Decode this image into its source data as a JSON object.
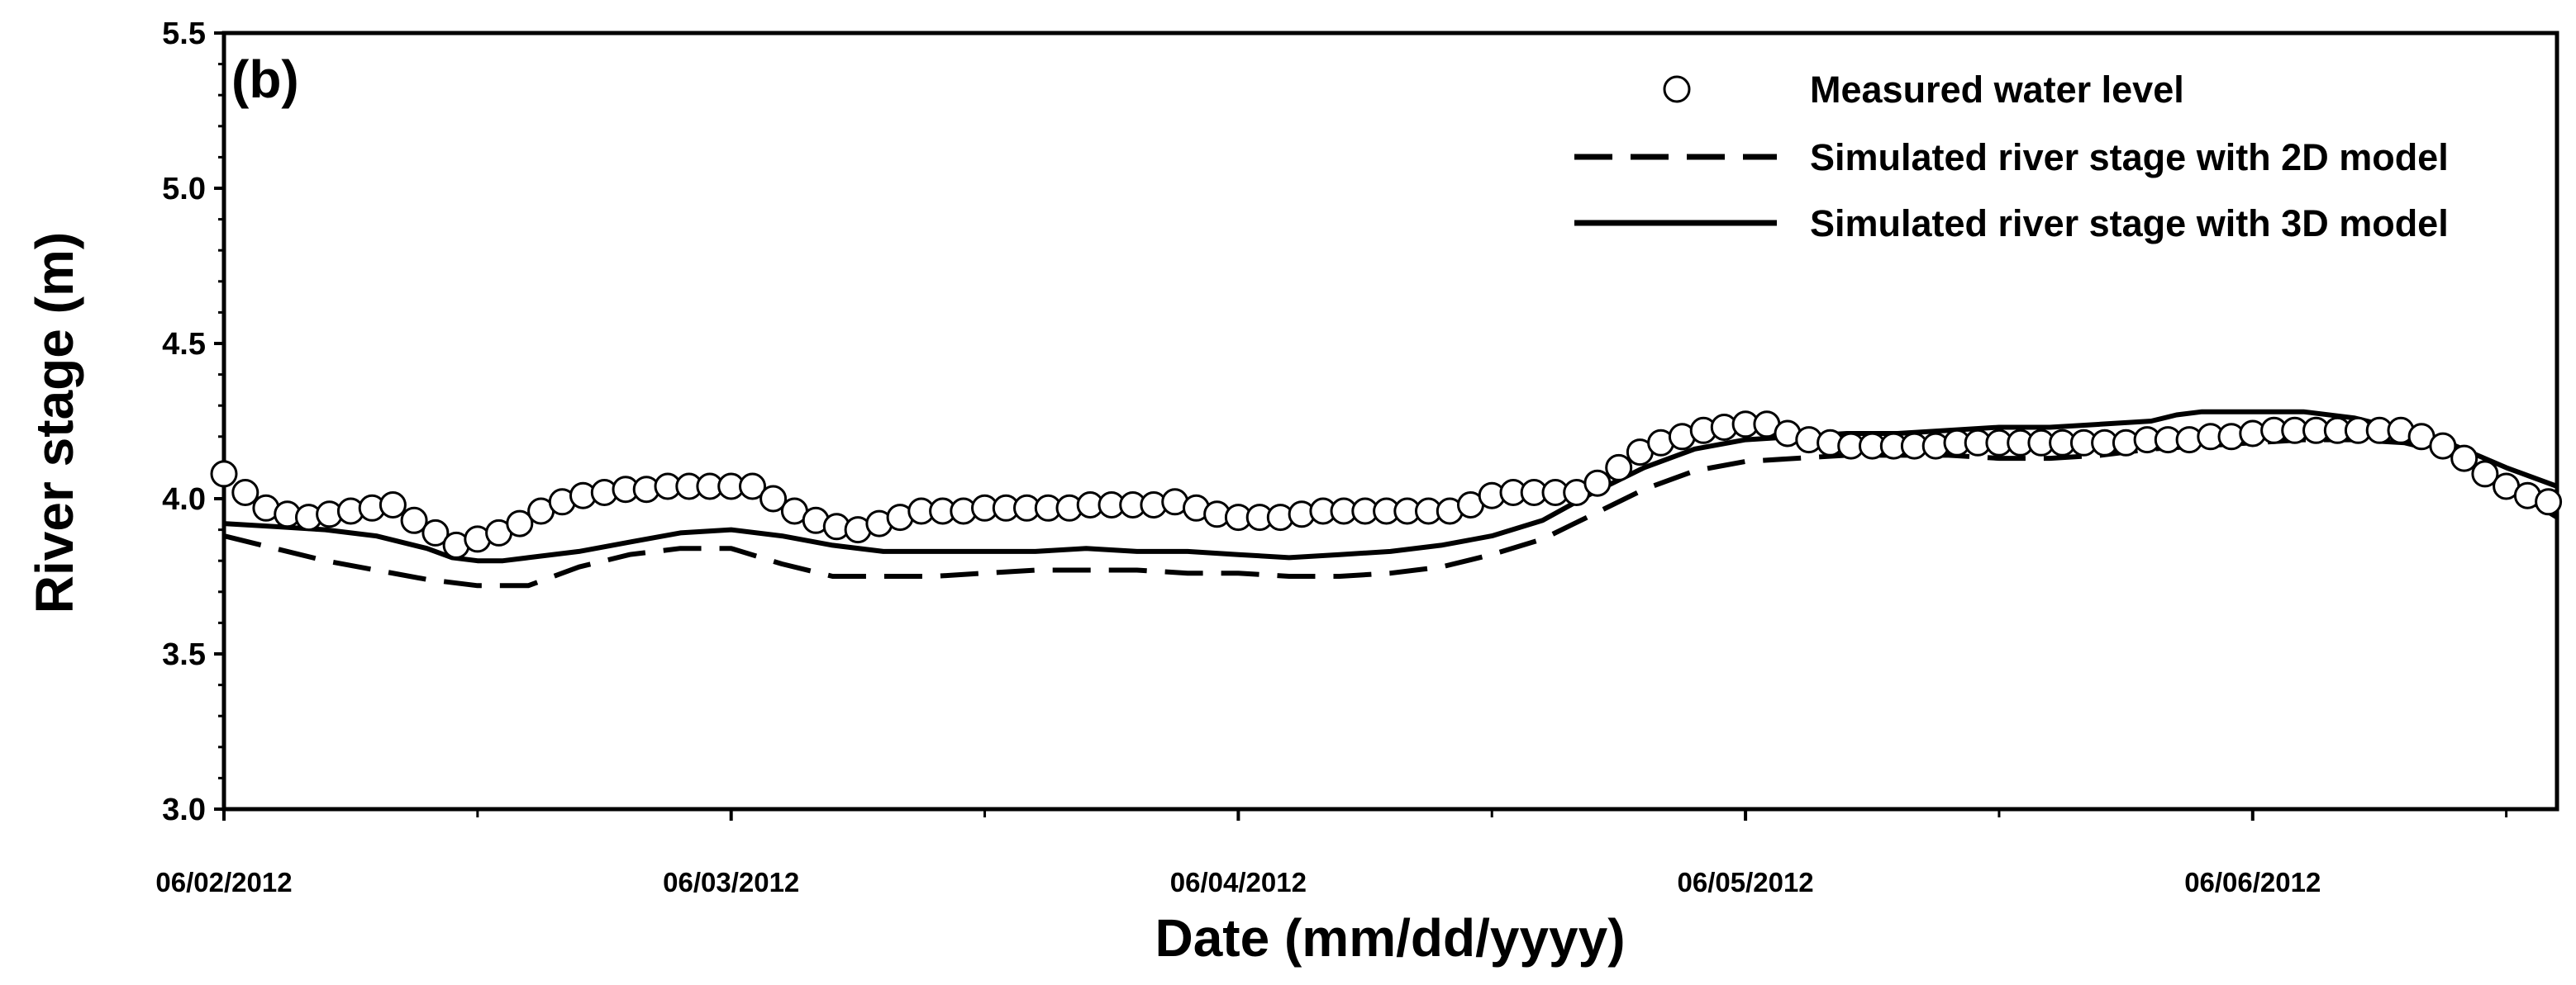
{
  "chart_data": {
    "type": "line",
    "panel_label": "(b)",
    "xlabel": "Date (mm/dd/yyyy)",
    "ylabel": "River stage (m)",
    "x_unit": "day",
    "xlim": [
      0,
      4.6
    ],
    "ylim": [
      3.0,
      5.5
    ],
    "y_ticks": [
      "3.0",
      "3.5",
      "4.0",
      "4.5",
      "5.0",
      "5.5"
    ],
    "x_ticks": [
      {
        "x": 0,
        "label": "06/02/2012"
      },
      {
        "x": 1,
        "label": "06/03/2012"
      },
      {
        "x": 2,
        "label": "06/04/2012"
      },
      {
        "x": 3,
        "label": "06/05/2012"
      },
      {
        "x": 4,
        "label": "06/06/2012"
      }
    ],
    "grid": false,
    "legend_position": "top-right",
    "series": [
      {
        "name": "Measured water level",
        "style": "circles",
        "color": "#000000",
        "points": [
          [
            0.0,
            4.08
          ],
          [
            0.042,
            4.02
          ],
          [
            0.083,
            3.97
          ],
          [
            0.125,
            3.95
          ],
          [
            0.167,
            3.94
          ],
          [
            0.208,
            3.95
          ],
          [
            0.25,
            3.96
          ],
          [
            0.292,
            3.97
          ],
          [
            0.333,
            3.98
          ],
          [
            0.375,
            3.93
          ],
          [
            0.417,
            3.89
          ],
          [
            0.458,
            3.85
          ],
          [
            0.5,
            3.87
          ],
          [
            0.542,
            3.89
          ],
          [
            0.583,
            3.92
          ],
          [
            0.625,
            3.96
          ],
          [
            0.667,
            3.99
          ],
          [
            0.708,
            4.01
          ],
          [
            0.75,
            4.02
          ],
          [
            0.792,
            4.03
          ],
          [
            0.833,
            4.03
          ],
          [
            0.875,
            4.04
          ],
          [
            0.917,
            4.04
          ],
          [
            0.958,
            4.04
          ],
          [
            1.0,
            4.04
          ],
          [
            1.042,
            4.04
          ],
          [
            1.083,
            4.0
          ],
          [
            1.125,
            3.96
          ],
          [
            1.167,
            3.93
          ],
          [
            1.208,
            3.91
          ],
          [
            1.25,
            3.9
          ],
          [
            1.292,
            3.92
          ],
          [
            1.333,
            3.94
          ],
          [
            1.375,
            3.96
          ],
          [
            1.417,
            3.96
          ],
          [
            1.458,
            3.96
          ],
          [
            1.5,
            3.97
          ],
          [
            1.542,
            3.97
          ],
          [
            1.583,
            3.97
          ],
          [
            1.625,
            3.97
          ],
          [
            1.667,
            3.97
          ],
          [
            1.708,
            3.98
          ],
          [
            1.75,
            3.98
          ],
          [
            1.792,
            3.98
          ],
          [
            1.833,
            3.98
          ],
          [
            1.875,
            3.99
          ],
          [
            1.917,
            3.97
          ],
          [
            1.958,
            3.95
          ],
          [
            2.0,
            3.94
          ],
          [
            2.042,
            3.94
          ],
          [
            2.083,
            3.94
          ],
          [
            2.125,
            3.95
          ],
          [
            2.167,
            3.96
          ],
          [
            2.208,
            3.96
          ],
          [
            2.25,
            3.96
          ],
          [
            2.292,
            3.96
          ],
          [
            2.333,
            3.96
          ],
          [
            2.375,
            3.96
          ],
          [
            2.417,
            3.96
          ],
          [
            2.458,
            3.98
          ],
          [
            2.5,
            4.01
          ],
          [
            2.542,
            4.02
          ],
          [
            2.583,
            4.02
          ],
          [
            2.625,
            4.02
          ],
          [
            2.667,
            4.02
          ],
          [
            2.708,
            4.05
          ],
          [
            2.75,
            4.1
          ],
          [
            2.792,
            4.15
          ],
          [
            2.833,
            4.18
          ],
          [
            2.875,
            4.2
          ],
          [
            2.917,
            4.22
          ],
          [
            2.958,
            4.23
          ],
          [
            3.0,
            4.24
          ],
          [
            3.042,
            4.24
          ],
          [
            3.083,
            4.21
          ],
          [
            3.125,
            4.19
          ],
          [
            3.167,
            4.18
          ],
          [
            3.208,
            4.17
          ],
          [
            3.25,
            4.17
          ],
          [
            3.292,
            4.17
          ],
          [
            3.333,
            4.17
          ],
          [
            3.375,
            4.17
          ],
          [
            3.417,
            4.18
          ],
          [
            3.458,
            4.18
          ],
          [
            3.5,
            4.18
          ],
          [
            3.542,
            4.18
          ],
          [
            3.583,
            4.18
          ],
          [
            3.625,
            4.18
          ],
          [
            3.667,
            4.18
          ],
          [
            3.708,
            4.18
          ],
          [
            3.75,
            4.18
          ],
          [
            3.792,
            4.19
          ],
          [
            3.833,
            4.19
          ],
          [
            3.875,
            4.19
          ],
          [
            3.917,
            4.2
          ],
          [
            3.958,
            4.2
          ],
          [
            4.0,
            4.21
          ],
          [
            4.042,
            4.22
          ],
          [
            4.083,
            4.22
          ],
          [
            4.125,
            4.22
          ],
          [
            4.167,
            4.22
          ],
          [
            4.208,
            4.22
          ],
          [
            4.25,
            4.22
          ],
          [
            4.292,
            4.22
          ],
          [
            4.333,
            4.2
          ],
          [
            4.375,
            4.17
          ],
          [
            4.417,
            4.13
          ],
          [
            4.458,
            4.08
          ],
          [
            4.5,
            4.04
          ],
          [
            4.542,
            4.01
          ],
          [
            4.583,
            3.99
          ]
        ]
      },
      {
        "name": "Simulated river stage with 2D model",
        "style": "dashed",
        "color": "#000000",
        "points": [
          [
            0.0,
            3.88
          ],
          [
            0.1,
            3.84
          ],
          [
            0.2,
            3.8
          ],
          [
            0.3,
            3.77
          ],
          [
            0.4,
            3.74
          ],
          [
            0.5,
            3.72
          ],
          [
            0.6,
            3.72
          ],
          [
            0.7,
            3.78
          ],
          [
            0.8,
            3.82
          ],
          [
            0.9,
            3.84
          ],
          [
            1.0,
            3.84
          ],
          [
            1.1,
            3.79
          ],
          [
            1.2,
            3.75
          ],
          [
            1.3,
            3.75
          ],
          [
            1.4,
            3.75
          ],
          [
            1.5,
            3.76
          ],
          [
            1.6,
            3.77
          ],
          [
            1.7,
            3.77
          ],
          [
            1.8,
            3.77
          ],
          [
            1.9,
            3.76
          ],
          [
            2.0,
            3.76
          ],
          [
            2.1,
            3.75
          ],
          [
            2.2,
            3.75
          ],
          [
            2.3,
            3.76
          ],
          [
            2.4,
            3.78
          ],
          [
            2.5,
            3.82
          ],
          [
            2.6,
            3.87
          ],
          [
            2.7,
            3.95
          ],
          [
            2.8,
            4.03
          ],
          [
            2.9,
            4.09
          ],
          [
            3.0,
            4.12
          ],
          [
            3.1,
            4.13
          ],
          [
            3.2,
            4.14
          ],
          [
            3.3,
            4.14
          ],
          [
            3.4,
            4.14
          ],
          [
            3.5,
            4.13
          ],
          [
            3.6,
            4.13
          ],
          [
            3.7,
            4.14
          ],
          [
            3.8,
            4.16
          ],
          [
            3.9,
            4.17
          ],
          [
            4.0,
            4.18
          ],
          [
            4.1,
            4.19
          ],
          [
            4.2,
            4.19
          ],
          [
            4.3,
            4.18
          ],
          [
            4.4,
            4.14
          ],
          [
            4.5,
            4.04
          ],
          [
            4.6,
            3.94
          ]
        ]
      },
      {
        "name": "Simulated river stage with 3D model",
        "style": "solid",
        "color": "#000000",
        "points": [
          [
            0.0,
            3.92
          ],
          [
            0.1,
            3.91
          ],
          [
            0.2,
            3.9
          ],
          [
            0.3,
            3.88
          ],
          [
            0.4,
            3.84
          ],
          [
            0.45,
            3.81
          ],
          [
            0.5,
            3.8
          ],
          [
            0.55,
            3.8
          ],
          [
            0.6,
            3.81
          ],
          [
            0.7,
            3.83
          ],
          [
            0.8,
            3.86
          ],
          [
            0.9,
            3.89
          ],
          [
            1.0,
            3.9
          ],
          [
            1.1,
            3.88
          ],
          [
            1.2,
            3.85
          ],
          [
            1.3,
            3.83
          ],
          [
            1.4,
            3.83
          ],
          [
            1.5,
            3.83
          ],
          [
            1.6,
            3.83
          ],
          [
            1.7,
            3.84
          ],
          [
            1.8,
            3.83
          ],
          [
            1.9,
            3.83
          ],
          [
            2.0,
            3.82
          ],
          [
            2.1,
            3.81
          ],
          [
            2.2,
            3.82
          ],
          [
            2.3,
            3.83
          ],
          [
            2.4,
            3.85
          ],
          [
            2.5,
            3.88
          ],
          [
            2.6,
            3.93
          ],
          [
            2.7,
            4.02
          ],
          [
            2.8,
            4.1
          ],
          [
            2.9,
            4.16
          ],
          [
            3.0,
            4.19
          ],
          [
            3.1,
            4.2
          ],
          [
            3.2,
            4.21
          ],
          [
            3.3,
            4.21
          ],
          [
            3.4,
            4.22
          ],
          [
            3.5,
            4.23
          ],
          [
            3.6,
            4.23
          ],
          [
            3.7,
            4.24
          ],
          [
            3.8,
            4.25
          ],
          [
            3.85,
            4.27
          ],
          [
            3.9,
            4.28
          ],
          [
            4.0,
            4.28
          ],
          [
            4.1,
            4.28
          ],
          [
            4.2,
            4.26
          ],
          [
            4.3,
            4.22
          ],
          [
            4.4,
            4.17
          ],
          [
            4.5,
            4.1
          ],
          [
            4.6,
            4.04
          ]
        ]
      }
    ]
  }
}
